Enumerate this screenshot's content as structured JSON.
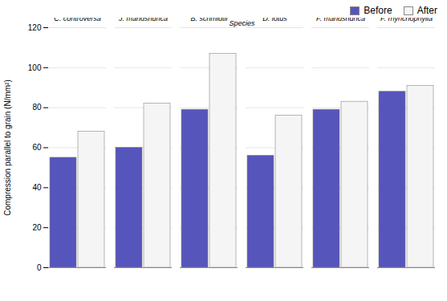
{
  "chart_data": {
    "type": "bar",
    "categories": [
      "C. controversa",
      "J. mandshurica",
      "B. schmidtii",
      "D. lotus",
      "F. mandshurica",
      "F. rhynchophylla"
    ],
    "series": [
      {
        "name": "Before",
        "color": "#5555bb",
        "values": [
          55,
          60,
          79,
          56,
          79,
          88
        ]
      },
      {
        "name": "After",
        "color": "#f5f5f5",
        "values": [
          68,
          82,
          107,
          76,
          83,
          91
        ]
      }
    ],
    "xlabel": "Species",
    "ylabel": "Compression parallel to grain (N/mm²)",
    "ylim": [
      0,
      120
    ],
    "yticks": [
      0,
      20,
      40,
      60,
      80,
      100,
      120
    ],
    "grid": true,
    "legend": "upper right"
  }
}
